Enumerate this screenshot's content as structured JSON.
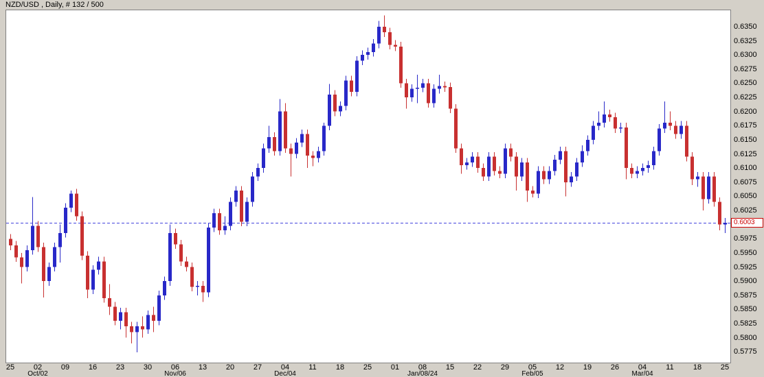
{
  "window": {
    "title": "NZD/USD , Daily, # 132 / 500"
  },
  "colors": {
    "background": "#d4d0c8",
    "plot_background": "#ffffff",
    "frame_border": "#808080",
    "candle_up": "#2828c8",
    "candle_down": "#c83030",
    "price_line": "#4242dd",
    "price_tag_border": "#cc0000",
    "price_tag_text": "#cc0000",
    "axis_text": "#000000"
  },
  "y_axis": {
    "labels": [
      "0.6350",
      "0.6325",
      "0.6300",
      "0.6275",
      "0.6250",
      "0.6225",
      "0.6200",
      "0.6175",
      "0.6150",
      "0.6125",
      "0.6100",
      "0.6075",
      "0.6050",
      "0.6025",
      "0.5975",
      "0.5950",
      "0.5925",
      "0.5900",
      "0.5875",
      "0.5850",
      "0.5825",
      "0.5800",
      "0.5775"
    ],
    "current_price_label": "0.6003"
  },
  "chart_data": {
    "type": "candlestick",
    "title": "NZD/USD Daily",
    "symbol": "NZD/USD",
    "timeframe": "Daily",
    "bar_counter": "# 132 / 500",
    "current_price": 0.6003,
    "ylim": [
      0.5756,
      0.6379
    ],
    "y_tick_step": 0.0025,
    "legend": "none",
    "grid": "off",
    "x_ticks": [
      "25",
      "02",
      "09",
      "16",
      "23",
      "30",
      "06",
      "13",
      "20",
      "27",
      "04",
      "11",
      "18",
      "25",
      "01",
      "08",
      "15",
      "22",
      "29",
      "05",
      "12",
      "19",
      "26",
      "04",
      "11",
      "18",
      "25"
    ],
    "month_labels": [
      {
        "tick_index": 1,
        "label": "Oct/02"
      },
      {
        "tick_index": 6,
        "label": "Nov/06"
      },
      {
        "tick_index": 10,
        "label": "Dec/04"
      },
      {
        "tick_index": 15,
        "label": "Jan/08/24"
      },
      {
        "tick_index": 19,
        "label": "Feb/05"
      },
      {
        "tick_index": 23,
        "label": "Mar/04"
      }
    ],
    "bars_per_tick": 5,
    "candles_ohlc": [
      [
        0.5975,
        0.5983,
        0.5955,
        0.5963
      ],
      [
        0.5963,
        0.5971,
        0.5934,
        0.5942
      ],
      [
        0.5942,
        0.595,
        0.5896,
        0.5925
      ],
      [
        0.5925,
        0.5963,
        0.5917,
        0.5955
      ],
      [
        0.5955,
        0.6049,
        0.5947,
        0.5998
      ],
      [
        0.5998,
        0.6006,
        0.5952,
        0.596
      ],
      [
        0.596,
        0.5968,
        0.5871,
        0.59
      ],
      [
        0.59,
        0.5933,
        0.5892,
        0.5925
      ],
      [
        0.5925,
        0.5968,
        0.5917,
        0.596
      ],
      [
        0.596,
        0.6,
        0.5933,
        0.5985
      ],
      [
        0.5985,
        0.6038,
        0.5977,
        0.603
      ],
      [
        0.603,
        0.606,
        0.6022,
        0.6055
      ],
      [
        0.6055,
        0.6063,
        0.6007,
        0.6015
      ],
      [
        0.6015,
        0.6023,
        0.5937,
        0.5945
      ],
      [
        0.5945,
        0.5953,
        0.587,
        0.5885
      ],
      [
        0.5885,
        0.5928,
        0.5877,
        0.592
      ],
      [
        0.592,
        0.5943,
        0.5912,
        0.5935
      ],
      [
        0.5935,
        0.5943,
        0.5862,
        0.587
      ],
      [
        0.587,
        0.5895,
        0.584,
        0.5855
      ],
      [
        0.5855,
        0.5863,
        0.5822,
        0.583
      ],
      [
        0.583,
        0.5853,
        0.5815,
        0.5845
      ],
      [
        0.5845,
        0.5853,
        0.58,
        0.582
      ],
      [
        0.582,
        0.5828,
        0.579,
        0.581
      ],
      [
        0.581,
        0.5828,
        0.5774,
        0.582
      ],
      [
        0.582,
        0.5838,
        0.58,
        0.5815
      ],
      [
        0.5815,
        0.5848,
        0.5807,
        0.584
      ],
      [
        0.584,
        0.5855,
        0.581,
        0.583
      ],
      [
        0.583,
        0.5883,
        0.5822,
        0.5875
      ],
      [
        0.5875,
        0.5908,
        0.5867,
        0.59
      ],
      [
        0.59,
        0.6,
        0.5892,
        0.5985
      ],
      [
        0.5985,
        0.5993,
        0.5957,
        0.5965
      ],
      [
        0.5965,
        0.5973,
        0.5927,
        0.5935
      ],
      [
        0.5935,
        0.5943,
        0.5917,
        0.5925
      ],
      [
        0.5925,
        0.5933,
        0.5882,
        0.589
      ],
      [
        0.589,
        0.59,
        0.5875,
        0.5892
      ],
      [
        0.5892,
        0.59,
        0.5863,
        0.588
      ],
      [
        0.588,
        0.6002,
        0.5872,
        0.5995
      ],
      [
        0.5995,
        0.6028,
        0.5987,
        0.602
      ],
      [
        0.602,
        0.6028,
        0.5982,
        0.599
      ],
      [
        0.599,
        0.6015,
        0.5982,
        0.5998
      ],
      [
        0.5998,
        0.6048,
        0.599,
        0.604
      ],
      [
        0.604,
        0.6068,
        0.6032,
        0.606
      ],
      [
        0.606,
        0.6068,
        0.5997,
        0.6005
      ],
      [
        0.6005,
        0.6048,
        0.5997,
        0.604
      ],
      [
        0.604,
        0.6093,
        0.6032,
        0.6085
      ],
      [
        0.6085,
        0.6108,
        0.6077,
        0.61
      ],
      [
        0.61,
        0.6143,
        0.6092,
        0.6135
      ],
      [
        0.6135,
        0.6175,
        0.6127,
        0.6155
      ],
      [
        0.6155,
        0.6163,
        0.6122,
        0.613
      ],
      [
        0.613,
        0.6222,
        0.6122,
        0.62
      ],
      [
        0.62,
        0.6215,
        0.6127,
        0.6135
      ],
      [
        0.6135,
        0.6143,
        0.6085,
        0.6125
      ],
      [
        0.6125,
        0.6153,
        0.6117,
        0.6145
      ],
      [
        0.6145,
        0.6168,
        0.6137,
        0.616
      ],
      [
        0.616,
        0.6168,
        0.61,
        0.6122
      ],
      [
        0.6122,
        0.613,
        0.6103,
        0.6118
      ],
      [
        0.6118,
        0.6138,
        0.611,
        0.613
      ],
      [
        0.613,
        0.618,
        0.6122,
        0.6175
      ],
      [
        0.6175,
        0.6249,
        0.6167,
        0.623
      ],
      [
        0.623,
        0.6238,
        0.6192,
        0.62
      ],
      [
        0.62,
        0.6218,
        0.6192,
        0.621
      ],
      [
        0.621,
        0.6263,
        0.6202,
        0.6255
      ],
      [
        0.6255,
        0.6263,
        0.6227,
        0.6235
      ],
      [
        0.6235,
        0.6298,
        0.6227,
        0.629
      ],
      [
        0.629,
        0.6308,
        0.6282,
        0.63
      ],
      [
        0.63,
        0.6313,
        0.6292,
        0.6305
      ],
      [
        0.6305,
        0.6328,
        0.6297,
        0.632
      ],
      [
        0.632,
        0.636,
        0.6312,
        0.635
      ],
      [
        0.635,
        0.637,
        0.6332,
        0.634
      ],
      [
        0.634,
        0.6348,
        0.631,
        0.6318
      ],
      [
        0.6318,
        0.6326,
        0.6307,
        0.6315
      ],
      [
        0.6315,
        0.6323,
        0.6242,
        0.625
      ],
      [
        0.625,
        0.6258,
        0.6205,
        0.6225
      ],
      [
        0.6225,
        0.6248,
        0.6217,
        0.624
      ],
      [
        0.624,
        0.6265,
        0.6215,
        0.6242
      ],
      [
        0.6242,
        0.6258,
        0.6234,
        0.625
      ],
      [
        0.625,
        0.6258,
        0.6207,
        0.6215
      ],
      [
        0.6215,
        0.6248,
        0.6207,
        0.624
      ],
      [
        0.624,
        0.6265,
        0.6232,
        0.6245
      ],
      [
        0.6245,
        0.6253,
        0.6235,
        0.6243
      ],
      [
        0.6243,
        0.6251,
        0.6197,
        0.6205
      ],
      [
        0.6205,
        0.6213,
        0.6127,
        0.6135
      ],
      [
        0.6135,
        0.6143,
        0.609,
        0.6105
      ],
      [
        0.6105,
        0.6118,
        0.6097,
        0.611
      ],
      [
        0.611,
        0.6128,
        0.6102,
        0.612
      ],
      [
        0.612,
        0.6128,
        0.6092,
        0.61
      ],
      [
        0.61,
        0.6108,
        0.6077,
        0.6085
      ],
      [
        0.6085,
        0.6128,
        0.6077,
        0.612
      ],
      [
        0.612,
        0.6128,
        0.6087,
        0.6095
      ],
      [
        0.6095,
        0.6103,
        0.6082,
        0.609
      ],
      [
        0.609,
        0.6143,
        0.6082,
        0.6135
      ],
      [
        0.6135,
        0.6143,
        0.6112,
        0.612
      ],
      [
        0.612,
        0.6128,
        0.606,
        0.6085
      ],
      [
        0.6085,
        0.6118,
        0.6077,
        0.611
      ],
      [
        0.611,
        0.6118,
        0.604,
        0.606
      ],
      [
        0.606,
        0.6068,
        0.6048,
        0.6055
      ],
      [
        0.6055,
        0.6103,
        0.6047,
        0.6095
      ],
      [
        0.6095,
        0.6103,
        0.6072,
        0.608
      ],
      [
        0.608,
        0.6103,
        0.6072,
        0.6095
      ],
      [
        0.6095,
        0.6123,
        0.6087,
        0.6115
      ],
      [
        0.6115,
        0.6138,
        0.6107,
        0.613
      ],
      [
        0.613,
        0.6138,
        0.605,
        0.6075
      ],
      [
        0.6075,
        0.6093,
        0.6067,
        0.6085
      ],
      [
        0.6085,
        0.6118,
        0.6077,
        0.611
      ],
      [
        0.611,
        0.614,
        0.6102,
        0.613
      ],
      [
        0.613,
        0.6158,
        0.6122,
        0.615
      ],
      [
        0.615,
        0.6183,
        0.6142,
        0.6175
      ],
      [
        0.6175,
        0.62,
        0.6167,
        0.618
      ],
      [
        0.618,
        0.6218,
        0.6172,
        0.6195
      ],
      [
        0.6195,
        0.6203,
        0.6182,
        0.619
      ],
      [
        0.619,
        0.6198,
        0.6162,
        0.617
      ],
      [
        0.617,
        0.618,
        0.6162,
        0.6172
      ],
      [
        0.6172,
        0.618,
        0.608,
        0.61
      ],
      [
        0.61,
        0.6108,
        0.6082,
        0.609
      ],
      [
        0.609,
        0.6103,
        0.6082,
        0.6095
      ],
      [
        0.6095,
        0.6108,
        0.6087,
        0.61
      ],
      [
        0.61,
        0.6113,
        0.6092,
        0.6105
      ],
      [
        0.6105,
        0.6138,
        0.6097,
        0.613
      ],
      [
        0.613,
        0.6178,
        0.6122,
        0.617
      ],
      [
        0.617,
        0.6218,
        0.6162,
        0.618
      ],
      [
        0.618,
        0.62,
        0.6167,
        0.6175
      ],
      [
        0.6175,
        0.6183,
        0.6152,
        0.616
      ],
      [
        0.616,
        0.6183,
        0.6152,
        0.6175
      ],
      [
        0.6175,
        0.6183,
        0.6112,
        0.612
      ],
      [
        0.612,
        0.6128,
        0.607,
        0.608
      ],
      [
        0.608,
        0.6093,
        0.6067,
        0.6085
      ],
      [
        0.6085,
        0.6093,
        0.6025,
        0.6045
      ],
      [
        0.6045,
        0.6093,
        0.6037,
        0.6085
      ],
      [
        0.6085,
        0.6093,
        0.6032,
        0.604
      ],
      [
        0.604,
        0.6048,
        0.599,
        0.6
      ],
      [
        0.6,
        0.6012,
        0.5985,
        0.6003
      ]
    ]
  }
}
